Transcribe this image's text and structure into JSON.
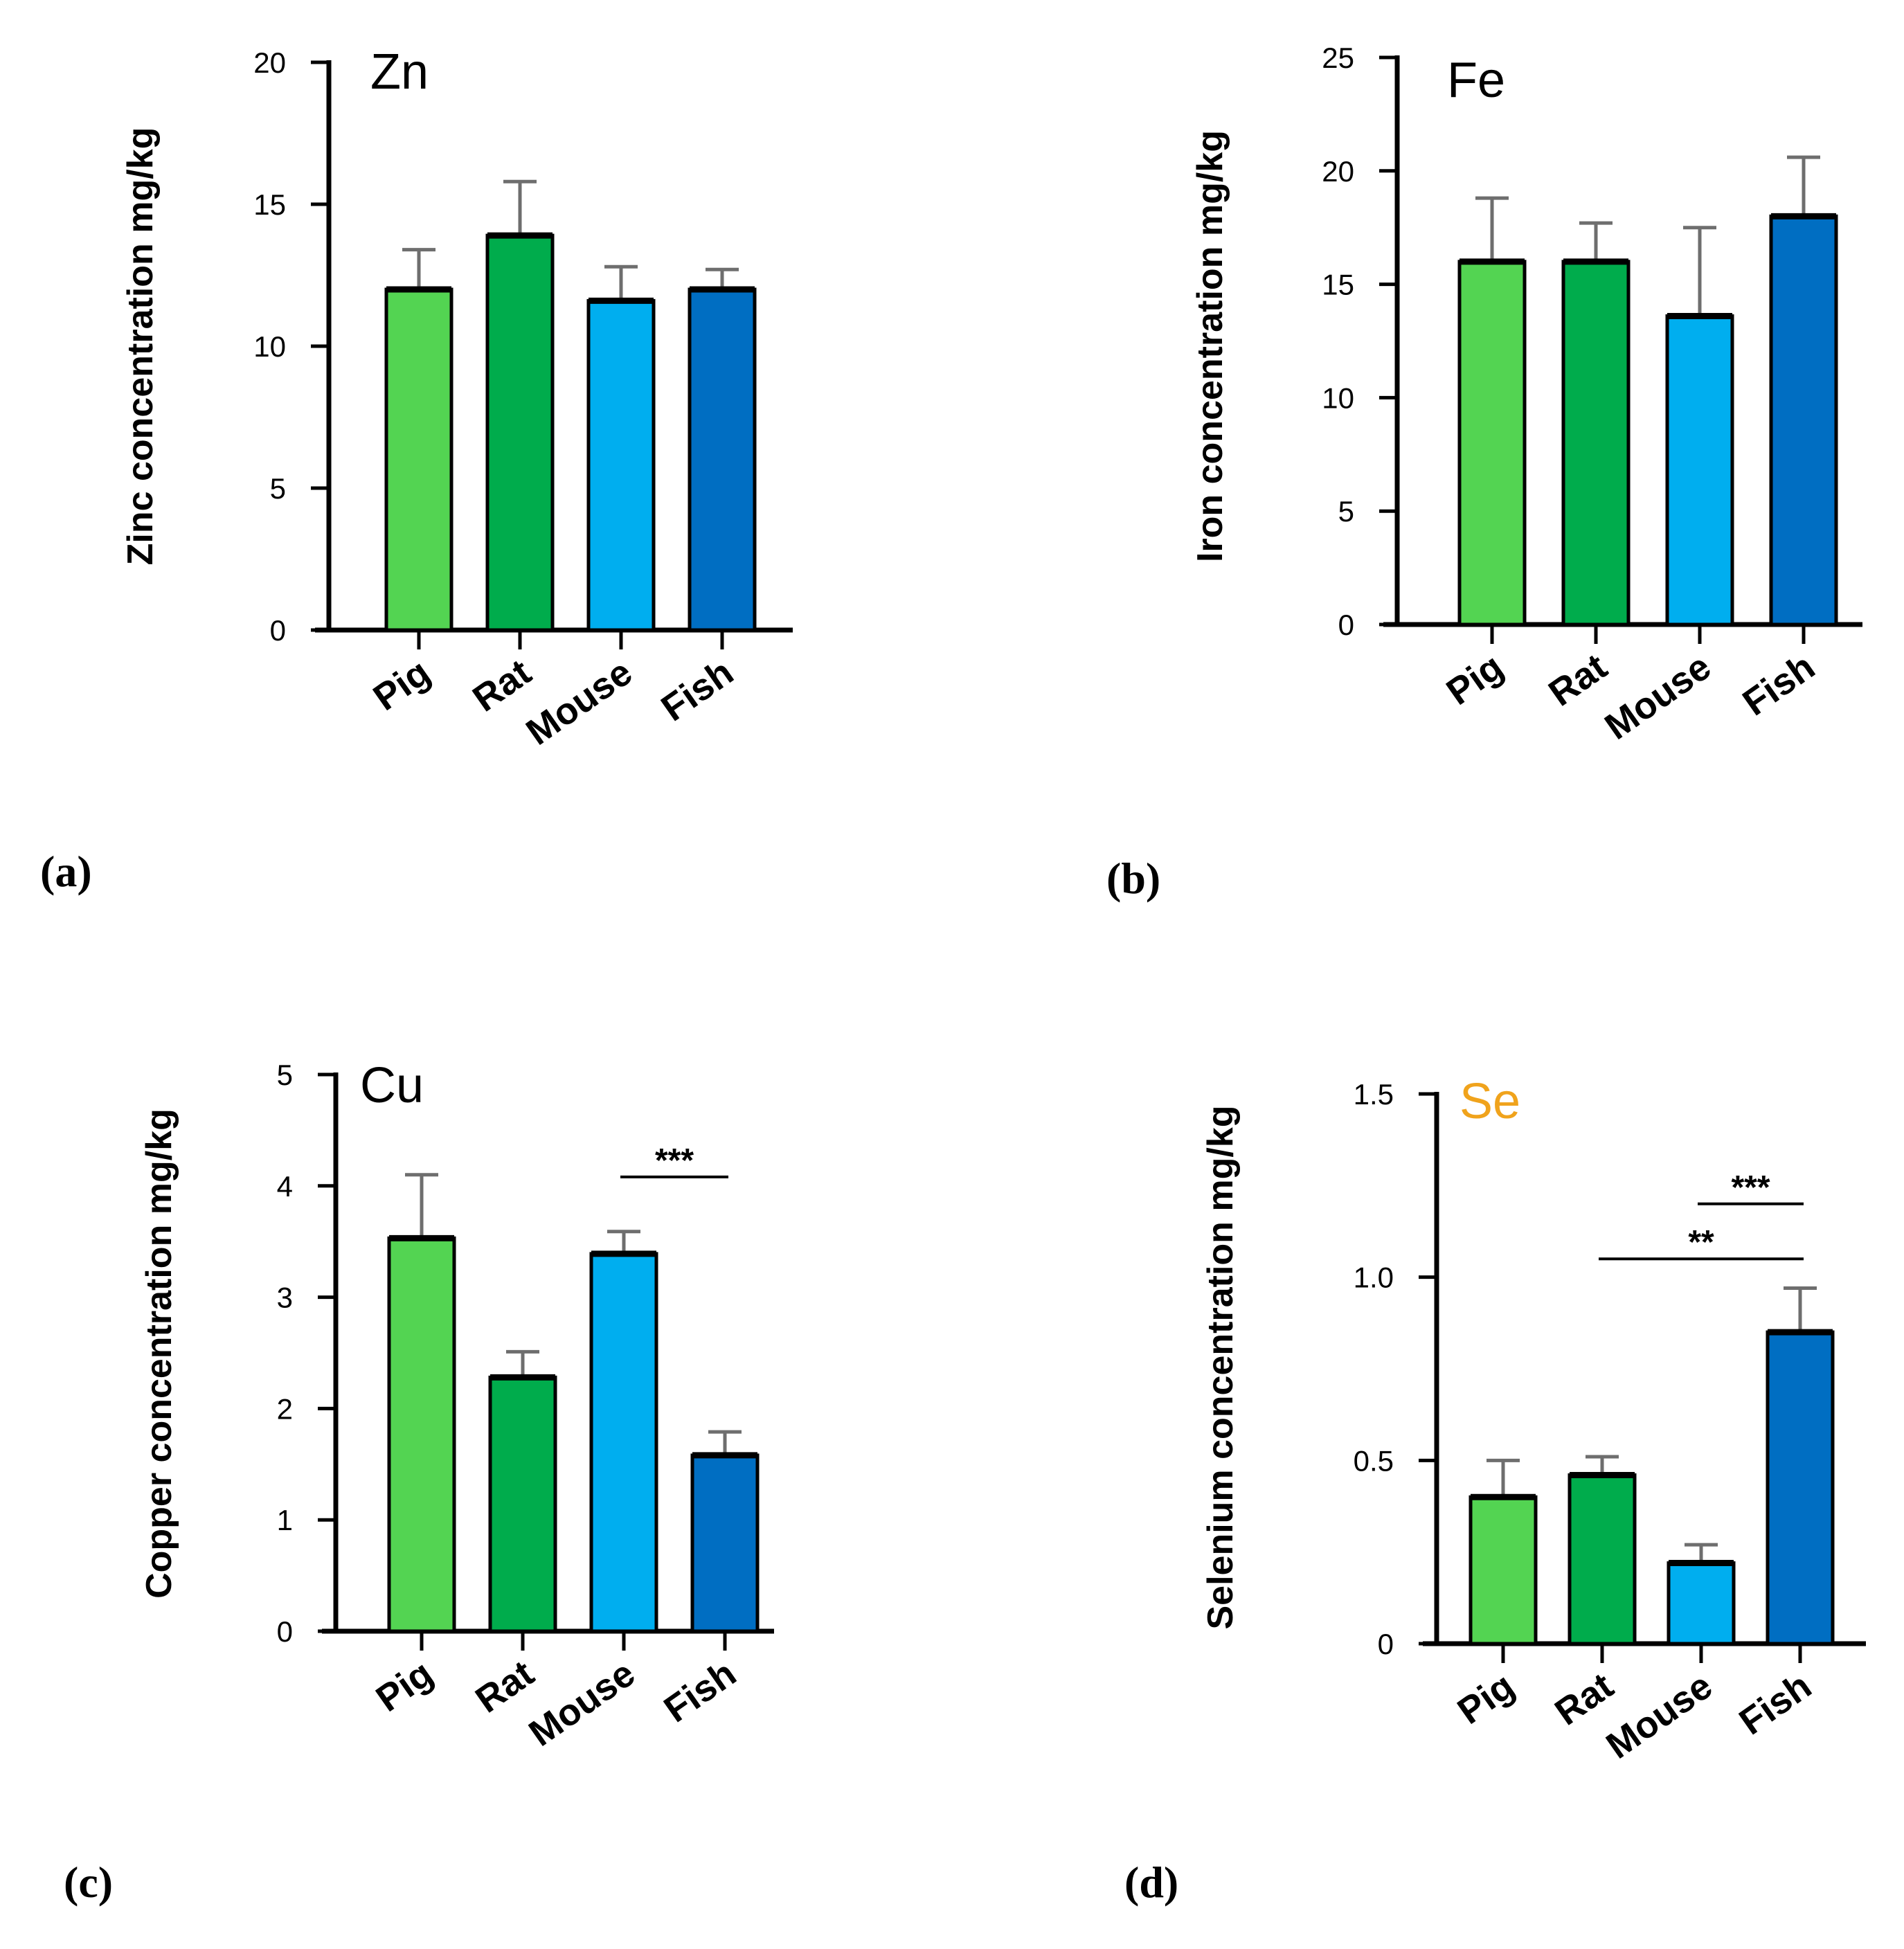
{
  "chart_data": [
    {
      "panel": "(a)",
      "type": "bar",
      "title": "Zn",
      "title_color": "#000000",
      "ylabel": "Zinc concentration mg/kg",
      "xlabel": "",
      "categories": [
        "Pig",
        "Rat",
        "Mouse",
        "Fish"
      ],
      "values": [
        12.0,
        13.9,
        11.6,
        12.0
      ],
      "errors": [
        1.4,
        1.9,
        1.2,
        0.7
      ],
      "ylim": [
        0,
        20
      ],
      "yticks": [
        0,
        5,
        10,
        15,
        20
      ],
      "colors": [
        "#53d452",
        "#00ac4c",
        "#00aeef",
        "#006ec2"
      ],
      "significance": []
    },
    {
      "panel": "(b)",
      "type": "bar",
      "title": "Fe",
      "title_color": "#000000",
      "ylabel": "Iron concentration mg/kg",
      "xlabel": "",
      "categories": [
        "Pig",
        "Rat",
        "Mouse",
        "Fish"
      ],
      "values": [
        16.0,
        16.0,
        13.6,
        18.0
      ],
      "errors": [
        2.8,
        1.7,
        3.9,
        2.6
      ],
      "ylim": [
        0,
        25
      ],
      "yticks": [
        0,
        5,
        10,
        15,
        20,
        25
      ],
      "colors": [
        "#53d452",
        "#00ac4c",
        "#00aeef",
        "#006ec2"
      ],
      "significance": []
    },
    {
      "panel": "(c)",
      "type": "bar",
      "title": "Cu",
      "title_color": "#000000",
      "ylabel": "Copper concentration mg/kg",
      "xlabel": "",
      "categories": [
        "Pig",
        "Rat",
        "Mouse",
        "Fish"
      ],
      "values": [
        3.53,
        2.28,
        3.39,
        1.58
      ],
      "errors": [
        0.57,
        0.23,
        0.2,
        0.21
      ],
      "ylim": [
        0,
        5
      ],
      "yticks": [
        0,
        1,
        2,
        3,
        4,
        5
      ],
      "colors": [
        "#53d452",
        "#00ac4c",
        "#00aeef",
        "#006ec2"
      ],
      "significance": [
        {
          "from": "Mouse",
          "to": "Fish",
          "y": 4.08,
          "text": "***"
        }
      ]
    },
    {
      "panel": "(d)",
      "type": "bar",
      "title": "Se",
      "title_color": "#f0a31c",
      "ylabel": "Selenium concentration mg/kg",
      "xlabel": "",
      "categories": [
        "Pig",
        "Rat",
        "Mouse",
        "Fish"
      ],
      "values": [
        0.4,
        0.46,
        0.22,
        0.85
      ],
      "errors": [
        0.1,
        0.05,
        0.05,
        0.12
      ],
      "ylim": [
        0,
        1.5
      ],
      "yticks": [
        0,
        0.5,
        1.0,
        1.5
      ],
      "yticklabels": [
        "0",
        "0.5",
        "1.0",
        "1.5"
      ],
      "colors": [
        "#53d452",
        "#00ac4c",
        "#00aeef",
        "#006ec2"
      ],
      "significance": [
        {
          "from": "Mouse",
          "to": "Fish",
          "y": 1.2,
          "text": "***"
        },
        {
          "from": "Rat",
          "to": "Fish",
          "y": 1.05,
          "text": "**"
        }
      ]
    }
  ]
}
